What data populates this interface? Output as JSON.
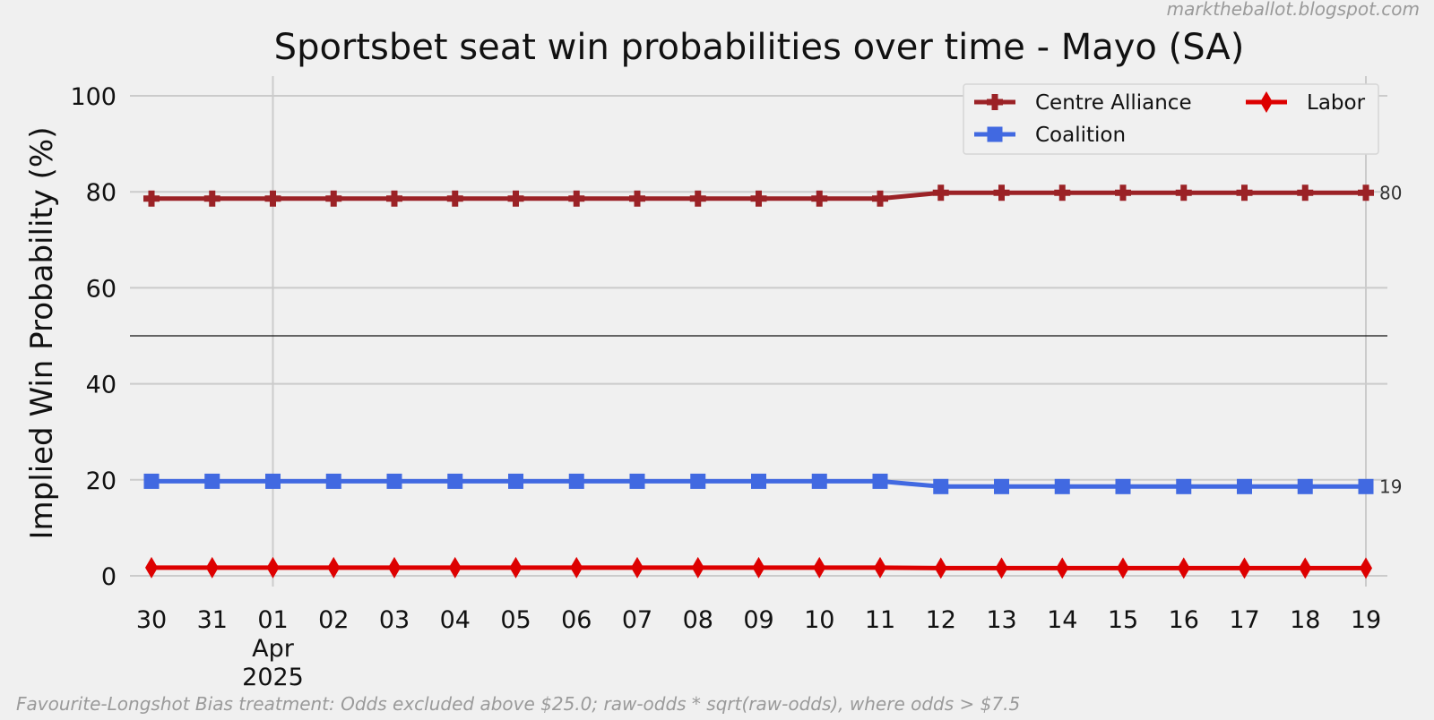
{
  "header": {
    "source": "marktheballot.blogspot.com"
  },
  "footer": {
    "note": "Favourite-Longshot Bias treatment: Odds excluded above $25.0; raw-odds * sqrt(raw-odds), where odds > $7.5"
  },
  "chart_data": {
    "type": "line",
    "title": "Sportsbet seat win probabilities over time - Mayo (SA)",
    "xlabel": "",
    "ylabel": "Implied Win Probability (%)",
    "ylim": [
      0,
      100
    ],
    "yticks": [
      0,
      20,
      40,
      60,
      80,
      100
    ],
    "grid": true,
    "reference_line": 50,
    "legend_position": "top-right",
    "x_tick_labels": [
      "30",
      "31",
      "01",
      "02",
      "03",
      "04",
      "05",
      "06",
      "07",
      "08",
      "09",
      "10",
      "11",
      "12",
      "13",
      "14",
      "15",
      "16",
      "17",
      "18",
      "19"
    ],
    "x_dates": [
      "2025-03-30",
      "2025-03-31",
      "2025-04-01",
      "2025-04-02",
      "2025-04-03",
      "2025-04-04",
      "2025-04-05",
      "2025-04-06",
      "2025-04-07",
      "2025-04-08",
      "2025-04-09",
      "2025-04-10",
      "2025-04-11",
      "2025-04-12",
      "2025-04-13",
      "2025-04-14",
      "2025-04-15",
      "2025-04-16",
      "2025-04-17",
      "2025-04-18",
      "2025-04-19"
    ],
    "x_major_label": {
      "at": "01",
      "month": "Apr",
      "year": "2025"
    },
    "series": [
      {
        "name": "Centre Alliance",
        "color": "#9b2226",
        "marker": "plus",
        "end_label": "80",
        "values": [
          78.6,
          78.6,
          78.6,
          78.6,
          78.6,
          78.6,
          78.6,
          78.6,
          78.6,
          78.6,
          78.6,
          78.6,
          78.6,
          79.8,
          79.8,
          79.8,
          79.8,
          79.8,
          79.8,
          79.8,
          79.8
        ]
      },
      {
        "name": "Coalition",
        "color": "#4169e1",
        "marker": "square",
        "end_label": "19",
        "values": [
          19.7,
          19.7,
          19.7,
          19.7,
          19.7,
          19.7,
          19.7,
          19.7,
          19.7,
          19.7,
          19.7,
          19.7,
          19.7,
          18.6,
          18.6,
          18.6,
          18.6,
          18.6,
          18.6,
          18.6,
          18.6
        ]
      },
      {
        "name": "Labor",
        "color": "#dd0000",
        "marker": "diamond",
        "end_label": "",
        "values": [
          1.7,
          1.7,
          1.7,
          1.7,
          1.7,
          1.7,
          1.7,
          1.7,
          1.7,
          1.7,
          1.7,
          1.7,
          1.7,
          1.6,
          1.6,
          1.6,
          1.6,
          1.6,
          1.6,
          1.6,
          1.6
        ]
      }
    ]
  }
}
